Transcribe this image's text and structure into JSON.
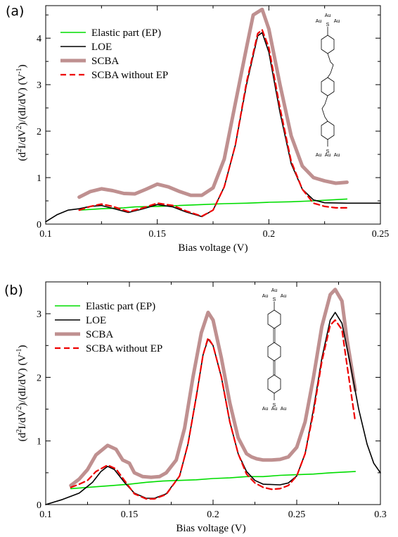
{
  "chart_data": [
    {
      "type": "line",
      "panel_label": "(a)",
      "xlabel": "Bias voltage  (V)",
      "ylabel": "(d2I/dV2)/(dI/dV)   (V-1)",
      "xlim": [
        0.1,
        0.25
      ],
      "ylim": [
        0,
        4.7
      ],
      "x_ticks": [
        0.1,
        0.15,
        0.2,
        0.25
      ],
      "x_tick_labels": [
        "0.1",
        "0.15",
        "0.2",
        "0.25"
      ],
      "y_ticks": [
        0,
        1,
        2,
        3,
        4
      ],
      "y_tick_labels": [
        "0",
        "1",
        "2",
        "3",
        "4"
      ],
      "legend_position": "top-left",
      "series": [
        {
          "name": "Elastic part (EP)",
          "color": "#00dd00",
          "style": "solid",
          "points": [
            [
              0.115,
              0.3
            ],
            [
              0.125,
              0.33
            ],
            [
              0.135,
              0.35
            ],
            [
              0.14,
              0.37
            ],
            [
              0.15,
              0.38
            ],
            [
              0.16,
              0.4
            ],
            [
              0.17,
              0.42
            ],
            [
              0.18,
              0.44
            ],
            [
              0.19,
              0.45
            ],
            [
              0.2,
              0.47
            ],
            [
              0.21,
              0.48
            ],
            [
              0.22,
              0.5
            ],
            [
              0.235,
              0.54
            ]
          ]
        },
        {
          "name": "LOE",
          "color": "#000000",
          "style": "solid",
          "points": [
            [
              0.1,
              0.05
            ],
            [
              0.105,
              0.2
            ],
            [
              0.11,
              0.3
            ],
            [
              0.115,
              0.33
            ],
            [
              0.12,
              0.38
            ],
            [
              0.125,
              0.4
            ],
            [
              0.13,
              0.34
            ],
            [
              0.137,
              0.25
            ],
            [
              0.143,
              0.32
            ],
            [
              0.15,
              0.42
            ],
            [
              0.157,
              0.37
            ],
            [
              0.163,
              0.26
            ],
            [
              0.17,
              0.16
            ],
            [
              0.175,
              0.3
            ],
            [
              0.18,
              0.8
            ],
            [
              0.185,
              1.7
            ],
            [
              0.19,
              3.0
            ],
            [
              0.195,
              4.05
            ],
            [
              0.197,
              4.12
            ],
            [
              0.2,
              3.7
            ],
            [
              0.205,
              2.4
            ],
            [
              0.21,
              1.3
            ],
            [
              0.215,
              0.75
            ],
            [
              0.22,
              0.52
            ],
            [
              0.225,
              0.46
            ],
            [
              0.235,
              0.45
            ],
            [
              0.25,
              0.45
            ]
          ]
        },
        {
          "name": "SCBA",
          "color": "#bf9090",
          "style": "thick",
          "points": [
            [
              0.115,
              0.58
            ],
            [
              0.12,
              0.7
            ],
            [
              0.125,
              0.76
            ],
            [
              0.13,
              0.72
            ],
            [
              0.135,
              0.66
            ],
            [
              0.14,
              0.65
            ],
            [
              0.145,
              0.75
            ],
            [
              0.15,
              0.86
            ],
            [
              0.155,
              0.8
            ],
            [
              0.16,
              0.7
            ],
            [
              0.165,
              0.62
            ],
            [
              0.17,
              0.62
            ],
            [
              0.175,
              0.78
            ],
            [
              0.18,
              1.4
            ],
            [
              0.185,
              2.6
            ],
            [
              0.19,
              3.8
            ],
            [
              0.193,
              4.5
            ],
            [
              0.197,
              4.62
            ],
            [
              0.2,
              4.2
            ],
            [
              0.205,
              3.0
            ],
            [
              0.21,
              1.9
            ],
            [
              0.215,
              1.25
            ],
            [
              0.22,
              1.0
            ],
            [
              0.225,
              0.93
            ],
            [
              0.23,
              0.88
            ],
            [
              0.235,
              0.9
            ]
          ]
        },
        {
          "name": "SCBA without EP",
          "color": "#ee0000",
          "style": "dashed",
          "points": [
            [
              0.115,
              0.3
            ],
            [
              0.12,
              0.38
            ],
            [
              0.125,
              0.43
            ],
            [
              0.13,
              0.38
            ],
            [
              0.137,
              0.27
            ],
            [
              0.143,
              0.34
            ],
            [
              0.15,
              0.45
            ],
            [
              0.157,
              0.4
            ],
            [
              0.163,
              0.28
            ],
            [
              0.17,
              0.17
            ],
            [
              0.175,
              0.3
            ],
            [
              0.18,
              0.8
            ],
            [
              0.185,
              1.7
            ],
            [
              0.19,
              3.05
            ],
            [
              0.195,
              4.1
            ],
            [
              0.197,
              4.18
            ],
            [
              0.2,
              3.8
            ],
            [
              0.205,
              2.5
            ],
            [
              0.21,
              1.35
            ],
            [
              0.215,
              0.75
            ],
            [
              0.22,
              0.45
            ],
            [
              0.225,
              0.38
            ],
            [
              0.23,
              0.35
            ],
            [
              0.235,
              0.35
            ]
          ]
        }
      ]
    },
    {
      "type": "line",
      "panel_label": "(b)",
      "xlabel": "Bias voltage  (V)",
      "ylabel": "(d2I/dV2)/(dI/dV)   (V-1)",
      "xlim": [
        0.1,
        0.3
      ],
      "ylim": [
        0,
        3.5
      ],
      "x_ticks": [
        0.1,
        0.15,
        0.2,
        0.25,
        0.3
      ],
      "x_tick_labels": [
        "0.1",
        "0.15",
        "0.2",
        "0.25",
        "0.3"
      ],
      "y_ticks": [
        0,
        1,
        2,
        3
      ],
      "y_tick_labels": [
        "0",
        "1",
        "2",
        "3"
      ],
      "legend_position": "top-left",
      "series": [
        {
          "name": "Elastic part (EP)",
          "color": "#00dd00",
          "style": "solid",
          "points": [
            [
              0.115,
              0.25
            ],
            [
              0.13,
              0.28
            ],
            [
              0.14,
              0.3
            ],
            [
              0.15,
              0.32
            ],
            [
              0.16,
              0.35
            ],
            [
              0.17,
              0.37
            ],
            [
              0.18,
              0.38
            ],
            [
              0.19,
              0.39
            ],
            [
              0.2,
              0.41
            ],
            [
              0.21,
              0.42
            ],
            [
              0.22,
              0.44
            ],
            [
              0.23,
              0.44
            ],
            [
              0.24,
              0.46
            ],
            [
              0.25,
              0.47
            ],
            [
              0.26,
              0.48
            ],
            [
              0.27,
              0.5
            ],
            [
              0.285,
              0.52
            ]
          ]
        },
        {
          "name": "LOE",
          "color": "#000000",
          "style": "solid",
          "points": [
            [
              0.1,
              0.0
            ],
            [
              0.11,
              0.08
            ],
            [
              0.12,
              0.18
            ],
            [
              0.128,
              0.35
            ],
            [
              0.133,
              0.52
            ],
            [
              0.137,
              0.6
            ],
            [
              0.141,
              0.55
            ],
            [
              0.147,
              0.35
            ],
            [
              0.153,
              0.18
            ],
            [
              0.16,
              0.1
            ],
            [
              0.165,
              0.1
            ],
            [
              0.172,
              0.17
            ],
            [
              0.18,
              0.45
            ],
            [
              0.185,
              0.95
            ],
            [
              0.19,
              1.7
            ],
            [
              0.194,
              2.35
            ],
            [
              0.197,
              2.6
            ],
            [
              0.2,
              2.5
            ],
            [
              0.205,
              2.0
            ],
            [
              0.21,
              1.3
            ],
            [
              0.215,
              0.8
            ],
            [
              0.22,
              0.52
            ],
            [
              0.225,
              0.38
            ],
            [
              0.23,
              0.32
            ],
            [
              0.24,
              0.31
            ],
            [
              0.245,
              0.34
            ],
            [
              0.25,
              0.45
            ],
            [
              0.255,
              0.8
            ],
            [
              0.26,
              1.5
            ],
            [
              0.265,
              2.3
            ],
            [
              0.27,
              2.9
            ],
            [
              0.273,
              3.02
            ],
            [
              0.277,
              2.85
            ],
            [
              0.282,
              2.2
            ],
            [
              0.287,
              1.5
            ],
            [
              0.292,
              0.95
            ],
            [
              0.296,
              0.65
            ],
            [
              0.3,
              0.5
            ]
          ]
        },
        {
          "name": "SCBA",
          "color": "#bf9090",
          "style": "thick",
          "points": [
            [
              0.115,
              0.3
            ],
            [
              0.12,
              0.4
            ],
            [
              0.125,
              0.55
            ],
            [
              0.13,
              0.78
            ],
            [
              0.137,
              0.93
            ],
            [
              0.142,
              0.87
            ],
            [
              0.146,
              0.7
            ],
            [
              0.15,
              0.65
            ],
            [
              0.153,
              0.5
            ],
            [
              0.158,
              0.44
            ],
            [
              0.163,
              0.43
            ],
            [
              0.168,
              0.44
            ],
            [
              0.172,
              0.5
            ],
            [
              0.178,
              0.7
            ],
            [
              0.183,
              1.2
            ],
            [
              0.188,
              2.0
            ],
            [
              0.193,
              2.7
            ],
            [
              0.197,
              3.02
            ],
            [
              0.2,
              2.9
            ],
            [
              0.205,
              2.3
            ],
            [
              0.21,
              1.6
            ],
            [
              0.215,
              1.05
            ],
            [
              0.22,
              0.8
            ],
            [
              0.223,
              0.75
            ],
            [
              0.226,
              0.72
            ],
            [
              0.23,
              0.7
            ],
            [
              0.235,
              0.7
            ],
            [
              0.24,
              0.71
            ],
            [
              0.245,
              0.75
            ],
            [
              0.25,
              0.9
            ],
            [
              0.255,
              1.3
            ],
            [
              0.26,
              2.0
            ],
            [
              0.265,
              2.8
            ],
            [
              0.27,
              3.3
            ],
            [
              0.273,
              3.38
            ],
            [
              0.277,
              3.2
            ],
            [
              0.28,
              2.6
            ],
            [
              0.285,
              1.8
            ]
          ]
        },
        {
          "name": "SCBA without EP",
          "color": "#ee0000",
          "style": "dashed",
          "points": [
            [
              0.115,
              0.27
            ],
            [
              0.12,
              0.32
            ],
            [
              0.125,
              0.38
            ],
            [
              0.13,
              0.52
            ],
            [
              0.137,
              0.62
            ],
            [
              0.142,
              0.56
            ],
            [
              0.147,
              0.38
            ],
            [
              0.153,
              0.17
            ],
            [
              0.16,
              0.09
            ],
            [
              0.165,
              0.09
            ],
            [
              0.172,
              0.16
            ],
            [
              0.18,
              0.45
            ],
            [
              0.185,
              0.95
            ],
            [
              0.19,
              1.7
            ],
            [
              0.194,
              2.35
            ],
            [
              0.197,
              2.62
            ],
            [
              0.2,
              2.5
            ],
            [
              0.205,
              2.0
            ],
            [
              0.21,
              1.3
            ],
            [
              0.215,
              0.8
            ],
            [
              0.22,
              0.48
            ],
            [
              0.225,
              0.34
            ],
            [
              0.23,
              0.27
            ],
            [
              0.235,
              0.24
            ],
            [
              0.24,
              0.25
            ],
            [
              0.245,
              0.3
            ],
            [
              0.25,
              0.45
            ],
            [
              0.255,
              0.8
            ],
            [
              0.26,
              1.45
            ],
            [
              0.265,
              2.25
            ],
            [
              0.27,
              2.82
            ],
            [
              0.273,
              2.9
            ],
            [
              0.277,
              2.75
            ],
            [
              0.28,
              2.2
            ],
            [
              0.285,
              1.3
            ]
          ]
        }
      ]
    }
  ],
  "molecules": {
    "a": {
      "top_atoms": [
        "Au",
        "Au",
        "Au"
      ],
      "top_s": "S",
      "bottom_atoms": [
        "Au",
        "Au",
        "Au"
      ],
      "bottom_s": "S"
    },
    "b": {
      "top_atoms": [
        "Au",
        "Au",
        "Au"
      ],
      "top_s": "S",
      "bottom_atoms": [
        "Au",
        "Au",
        "Au"
      ],
      "bottom_s": "S"
    }
  }
}
